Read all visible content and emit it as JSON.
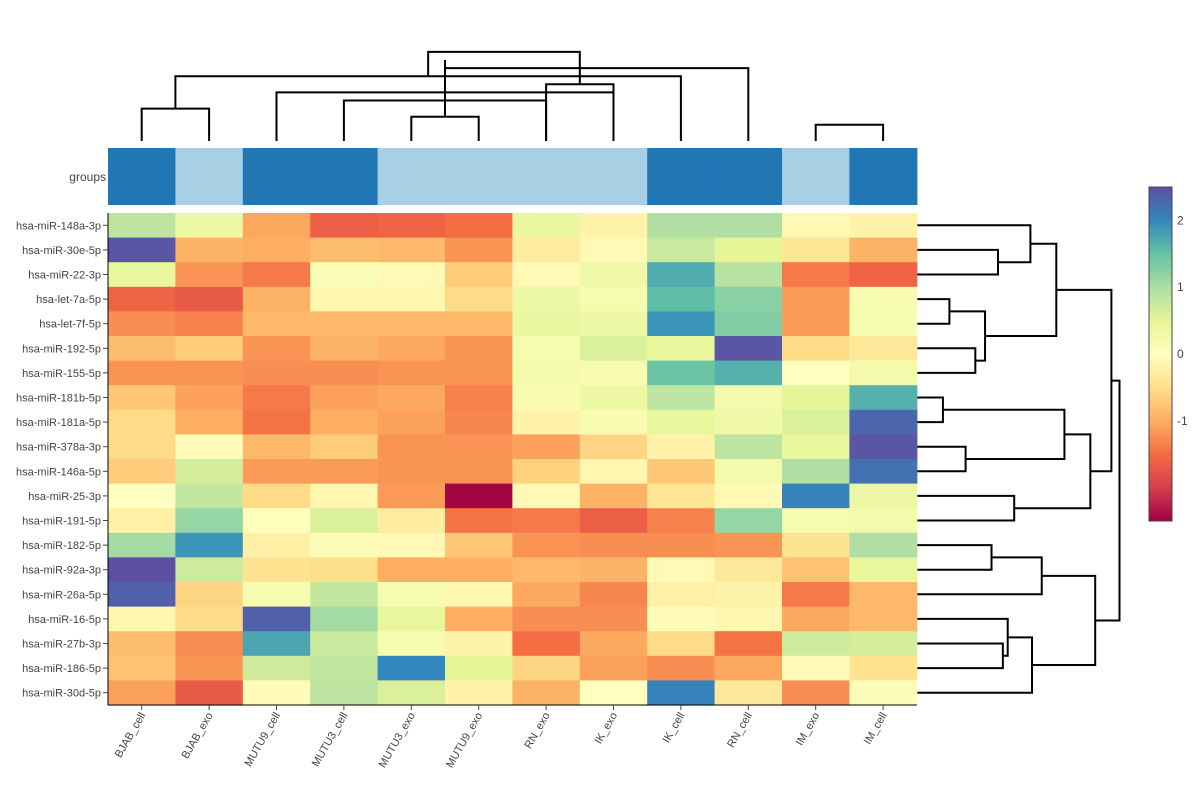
{
  "chart_data": {
    "type": "heatmap",
    "columns": [
      "BJAB_cell",
      "BJAB_exo",
      "MUTU9_cell",
      "MUTU3_cell",
      "MUTU3_exo",
      "MUTU9_exo",
      "RN_exo",
      "IK_exo",
      "IK_cell",
      "RN_cell",
      "IM_exo",
      "IM_cell"
    ],
    "rows": [
      "hsa-miR-148a-3p",
      "hsa-miR-30e-5p",
      "hsa-miR-22-3p",
      "hsa-let-7a-5p",
      "hsa-let-7f-5p",
      "hsa-miR-192-5p",
      "hsa-miR-155-5p",
      "hsa-miR-181b-5p",
      "hsa-miR-181a-5p",
      "hsa-miR-378a-3p",
      "hsa-miR-146a-5p",
      "hsa-miR-25-3p",
      "hsa-miR-191-5p",
      "hsa-miR-182-5p",
      "hsa-miR-92a-3p",
      "hsa-miR-26a-5p",
      "hsa-miR-16-5p",
      "hsa-miR-27b-3p",
      "hsa-miR-186-5p",
      "hsa-miR-30d-5p"
    ],
    "values": [
      [
        0.85,
        0.35,
        -1.05,
        -1.65,
        -1.6,
        -1.5,
        0.4,
        -0.2,
        0.95,
        0.95,
        -0.1,
        -0.2
      ],
      [
        2.45,
        -0.95,
        -1.0,
        -0.85,
        -0.9,
        -1.2,
        -0.3,
        -0.1,
        0.75,
        0.5,
        -0.4,
        -0.95
      ],
      [
        0.45,
        -1.2,
        -1.4,
        0.1,
        -0.1,
        -0.7,
        -0.1,
        0.3,
        1.7,
        0.9,
        -1.4,
        -1.6
      ],
      [
        -1.6,
        -1.7,
        -0.95,
        -0.15,
        -0.15,
        -0.55,
        0.35,
        0.2,
        1.55,
        1.25,
        -1.15,
        0.15
      ],
      [
        -1.25,
        -1.35,
        -0.9,
        -0.9,
        -0.9,
        -0.9,
        0.4,
        0.35,
        1.9,
        1.3,
        -1.15,
        0.2
      ],
      [
        -0.85,
        -0.7,
        -1.2,
        -0.95,
        -1.05,
        -1.2,
        0.2,
        0.6,
        0.45,
        2.45,
        -0.55,
        -0.35
      ],
      [
        -1.2,
        -1.2,
        -1.25,
        -1.25,
        -1.2,
        -1.2,
        0.25,
        0.15,
        1.45,
        1.65,
        0.0,
        0.25
      ],
      [
        -0.75,
        -1.1,
        -1.4,
        -1.1,
        -1.05,
        -1.35,
        0.15,
        0.35,
        0.85,
        0.25,
        0.5,
        1.65
      ],
      [
        -0.55,
        -1.0,
        -1.45,
        -1.0,
        -1.1,
        -1.3,
        -0.2,
        0.15,
        0.45,
        0.3,
        0.6,
        2.3
      ],
      [
        -0.55,
        -0.05,
        -0.9,
        -0.7,
        -1.2,
        -1.2,
        -1.1,
        -0.6,
        -0.2,
        0.85,
        0.45,
        2.45
      ],
      [
        -0.7,
        0.65,
        -1.15,
        -1.15,
        -1.2,
        -1.2,
        -0.65,
        -0.15,
        -0.75,
        0.25,
        0.95,
        2.2
      ],
      [
        0.0,
        0.8,
        -0.55,
        -0.15,
        -1.15,
        -2.45,
        -0.1,
        -0.95,
        -0.4,
        -0.1,
        2.05,
        0.35
      ],
      [
        -0.25,
        1.15,
        0.05,
        0.6,
        -0.3,
        -1.45,
        -1.4,
        -1.65,
        -1.35,
        1.15,
        0.2,
        0.25
      ],
      [
        1.05,
        1.9,
        -0.25,
        -0.05,
        -0.1,
        -0.75,
        -1.2,
        -1.25,
        -1.25,
        -1.2,
        -0.45,
        0.95
      ],
      [
        2.5,
        0.7,
        -0.45,
        -0.5,
        -1.0,
        -1.0,
        -0.9,
        -0.95,
        -0.1,
        -0.35,
        -0.8,
        0.45
      ],
      [
        2.35,
        -0.6,
        0.2,
        0.8,
        0.2,
        -0.15,
        -1.05,
        -1.3,
        -0.25,
        -0.2,
        -1.4,
        -0.9
      ],
      [
        -0.15,
        -0.55,
        2.35,
        1.05,
        0.45,
        -1.0,
        -1.25,
        -1.25,
        -0.05,
        -0.15,
        -1.05,
        -0.9
      ],
      [
        -0.85,
        -1.25,
        1.75,
        0.75,
        0.2,
        -0.2,
        -1.5,
        -1.05,
        -0.55,
        -1.45,
        0.7,
        0.65
      ],
      [
        -0.8,
        -1.2,
        0.7,
        0.8,
        2.0,
        0.5,
        -0.6,
        -1.1,
        -1.25,
        -1.05,
        -0.05,
        -0.45
      ],
      [
        -1.1,
        -1.7,
        -0.05,
        0.85,
        0.6,
        -0.2,
        -0.95,
        0.0,
        2.05,
        -0.35,
        -1.25,
        0.1
      ]
    ],
    "groups_label": "groups",
    "groups": [
      "A",
      "B",
      "A",
      "A",
      "B",
      "B",
      "B",
      "B",
      "A",
      "A",
      "B",
      "A"
    ],
    "group_colors": {
      "A": "#2077b4",
      "B": "#a8cfe4"
    },
    "colorscale": "Spectral",
    "zrange": [
      -2.5,
      2.5
    ],
    "colorbar_ticks": [
      -1,
      0,
      1,
      2
    ],
    "top_dendrogram": [
      [
        0,
        1,
        4
      ],
      [
        4,
        5,
        3
      ],
      [
        3,
        6,
        5
      ],
      [
        2,
        7,
        6
      ],
      [
        12,
        8,
        8
      ],
      [
        6,
        7,
        7
      ],
      [
        10,
        11,
        2
      ],
      [
        9,
        13,
        9
      ],
      [
        14,
        15,
        10
      ],
      [
        16,
        17,
        11
      ]
    ],
    "right_dendrogram": [
      [
        3,
        4,
        2.0
      ],
      [
        5,
        6,
        3.6
      ],
      [
        1,
        2,
        5.0
      ],
      [
        0,
        22,
        7.0
      ],
      [
        21,
        20,
        4.2
      ],
      [
        7,
        8,
        1.6
      ],
      [
        10,
        9,
        3.0
      ],
      [
        25,
        26,
        9.1
      ],
      [
        11,
        12,
        6.0
      ],
      [
        27,
        28,
        10.7
      ],
      [
        24,
        23,
        8.6
      ],
      [
        18,
        17,
        5.3
      ],
      [
        16,
        31,
        5.6
      ],
      [
        32,
        19,
        7.1
      ],
      [
        13,
        14,
        4.6
      ],
      [
        34,
        15,
        7.7
      ],
      [
        35,
        33,
        11.0
      ],
      [
        30,
        29,
        12.0
      ],
      [
        36,
        37,
        12.5
      ]
    ]
  }
}
